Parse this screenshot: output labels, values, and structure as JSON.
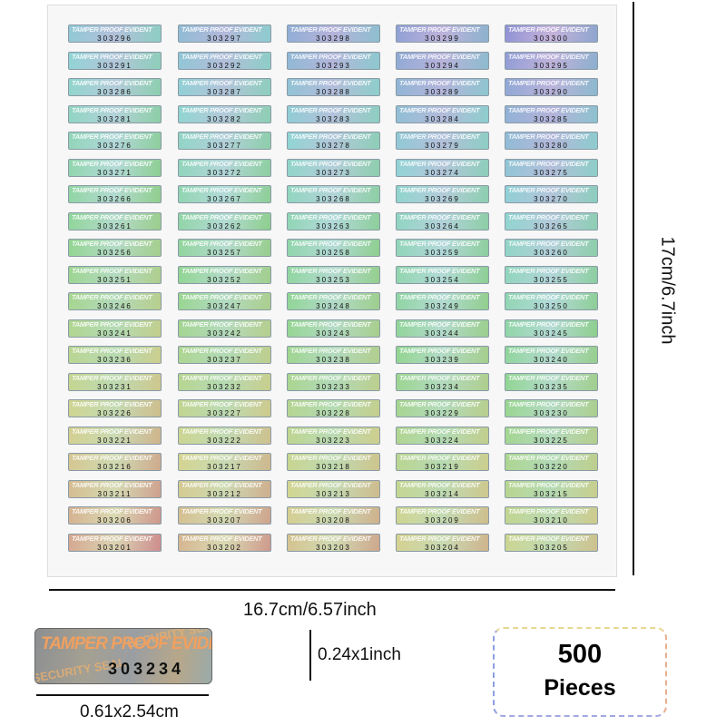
{
  "sticker_text": "TAMPER PROOF EVIDENT",
  "serial_rows": [
    [
      "303296",
      "303297",
      "303298",
      "303299",
      "303300"
    ],
    [
      "303291",
      "303292",
      "303293",
      "303294",
      "303295"
    ],
    [
      "303286",
      "303287",
      "303288",
      "303289",
      "303290"
    ],
    [
      "303281",
      "303282",
      "303283",
      "303284",
      "303285"
    ],
    [
      "303276",
      "303277",
      "303278",
      "303279",
      "303280"
    ],
    [
      "303271",
      "303272",
      "303273",
      "303274",
      "303275"
    ],
    [
      "303266",
      "303267",
      "303268",
      "303269",
      "303270"
    ],
    [
      "303261",
      "303262",
      "303263",
      "303264",
      "303265"
    ],
    [
      "303256",
      "303257",
      "303258",
      "303259",
      "303260"
    ],
    [
      "303251",
      "303252",
      "303253",
      "303254",
      "303255"
    ],
    [
      "303246",
      "303247",
      "303248",
      "303249",
      "303250"
    ],
    [
      "303241",
      "303242",
      "303243",
      "303244",
      "303245"
    ],
    [
      "303236",
      "303237",
      "303238",
      "303239",
      "303240"
    ],
    [
      "303231",
      "303232",
      "303233",
      "303234",
      "303235"
    ],
    [
      "303226",
      "303227",
      "303228",
      "303229",
      "303230"
    ],
    [
      "303221",
      "303222",
      "303223",
      "303224",
      "303225"
    ],
    [
      "303216",
      "303217",
      "303218",
      "303219",
      "303220"
    ],
    [
      "303211",
      "303212",
      "303213",
      "303214",
      "303215"
    ],
    [
      "303206",
      "303207",
      "303208",
      "303209",
      "303210"
    ],
    [
      "303201",
      "303202",
      "303203",
      "303204",
      "303205"
    ]
  ],
  "sheet_height_label": "17cm/6.7inch",
  "sheet_width_label": "16.7cm/6.57inch",
  "sample": {
    "text": "TAMPER PROOF EVIDENT",
    "pattern_text": "SECURITY SEAL",
    "serial": "303234",
    "height_label": "0.24x1inch",
    "width_label": "0.61x2.54cm"
  },
  "count": {
    "number": "500",
    "unit": "Pieces"
  },
  "colors": {
    "top_tint": "#7fd0e0",
    "bottom_tint": "#e0a080"
  }
}
